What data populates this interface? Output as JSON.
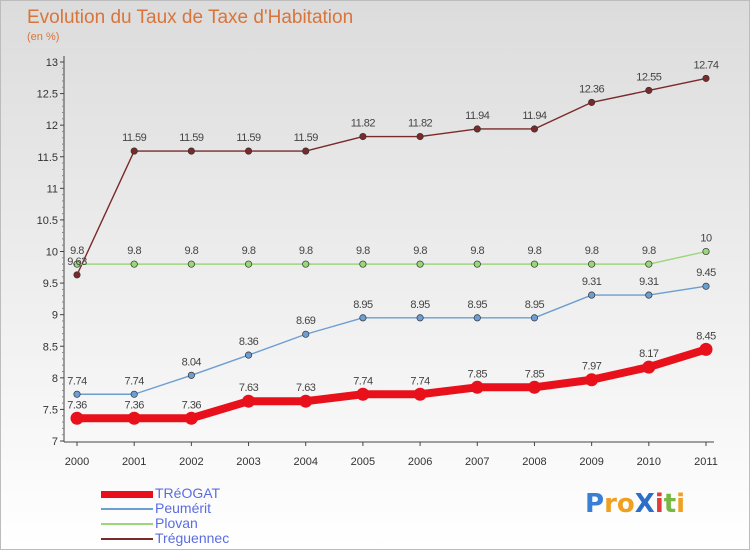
{
  "title": "Evolution du Taux de Taxe d'Habitation",
  "subtitle": "(en %)",
  "brand": {
    "text": "Proxiti",
    "letters": [
      "P",
      "r",
      "o",
      "X",
      "i",
      "t",
      "i"
    ],
    "colors": [
      "#3a7fd6",
      "#f0a020",
      "#f0a020",
      "#2c6fc9",
      "#e03c3c",
      "#77b843",
      "#f0a020"
    ]
  },
  "chart_data": {
    "type": "line",
    "title": "Evolution du Taux de Taxe d'Habitation",
    "ylabel": "(en %)",
    "xlabel": "",
    "ylim": [
      7,
      13
    ],
    "yticks": [
      "7",
      "7.5",
      "8",
      "8.5",
      "9",
      "9.5",
      "10",
      "10.5",
      "11",
      "11.5",
      "12",
      "12.5",
      "13"
    ],
    "categories": [
      "2000",
      "2001",
      "2002",
      "2003",
      "2004",
      "2005",
      "2006",
      "2007",
      "2008",
      "2009",
      "2010",
      "2011"
    ],
    "series": [
      {
        "name": "Tréguennec",
        "color": "#7a2a2a",
        "values": [
          9.63,
          11.59,
          11.59,
          11.59,
          11.59,
          11.82,
          11.82,
          11.94,
          11.94,
          12.36,
          12.55,
          12.74
        ],
        "labels": [
          "9.63",
          "11.59",
          "11.59",
          "11.59",
          "11.59",
          "11.82",
          "11.82",
          "11.94",
          "11.94",
          "12.36",
          "12.55",
          "12.74"
        ]
      },
      {
        "name": "Plovan",
        "color": "#9ad77a",
        "values": [
          9.8,
          9.8,
          9.8,
          9.8,
          9.8,
          9.8,
          9.8,
          9.8,
          9.8,
          9.8,
          9.8,
          10
        ],
        "labels": [
          "9.8",
          "9.8",
          "9.8",
          "9.8",
          "9.8",
          "9.8",
          "9.8",
          "9.8",
          "9.8",
          "9.8",
          "9.8",
          "10"
        ]
      },
      {
        "name": "Peumérit",
        "color": "#6d9ed1",
        "values": [
          7.74,
          7.74,
          8.04,
          8.36,
          8.69,
          8.95,
          8.95,
          8.95,
          8.95,
          9.31,
          9.31,
          9.45
        ],
        "labels": [
          "7.74",
          "7.74",
          "8.04",
          "8.36",
          "8.69",
          "8.95",
          "8.95",
          "8.95",
          "8.95",
          "9.31",
          "9.31",
          "9.45"
        ]
      },
      {
        "name": "TRéOGAT",
        "color": "#e8101a",
        "values": [
          7.36,
          7.36,
          7.36,
          7.63,
          7.63,
          7.74,
          7.74,
          7.85,
          7.85,
          7.97,
          8.17,
          8.45
        ],
        "labels": [
          "7.36",
          "7.36",
          "7.36",
          "7.63",
          "7.63",
          "7.74",
          "7.74",
          "7.85",
          "7.85",
          "7.97",
          "8.17",
          "8.45"
        ]
      }
    ],
    "legend": [
      {
        "name": "TRéOGAT",
        "color": "#e8101a",
        "weight": "thick"
      },
      {
        "name": "Peumérit",
        "color": "#6d9ed1",
        "weight": "thin"
      },
      {
        "name": "Plovan",
        "color": "#9ad77a",
        "weight": "thin"
      },
      {
        "name": "Tréguennec",
        "color": "#7a2a2a",
        "weight": "thin"
      }
    ]
  }
}
